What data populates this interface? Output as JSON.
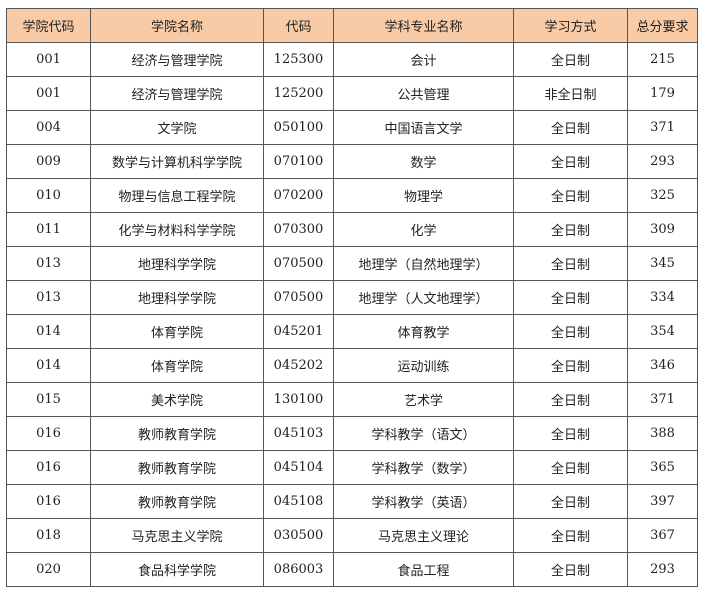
{
  "table": {
    "header": [
      "学院代码",
      "学院名称",
      "代码",
      "学科专业名称",
      "学习方式",
      "总分要求"
    ],
    "rows": [
      [
        "001",
        "经济与管理学院",
        "125300",
        "会计",
        "全日制",
        215
      ],
      [
        "001",
        "经济与管理学院",
        "125200",
        "公共管理",
        "非全日制",
        179
      ],
      [
        "004",
        "文学院",
        "050100",
        "中国语言文学",
        "全日制",
        371
      ],
      [
        "009",
        "数学与计算机科学学院",
        "070100",
        "数学",
        "全日制",
        293
      ],
      [
        "010",
        "物理与信息工程学院",
        "070200",
        "物理学",
        "全日制",
        325
      ],
      [
        "011",
        "化学与材料科学学院",
        "070300",
        "化学",
        "全日制",
        309
      ],
      [
        "013",
        "地理科学学院",
        "070500",
        "地理学（自然地理学）",
        "全日制",
        345
      ],
      [
        "013",
        "地理科学学院",
        "070500",
        "地理学（人文地理学）",
        "全日制",
        334
      ],
      [
        "014",
        "体育学院",
        "045201",
        "体育教学",
        "全日制",
        354
      ],
      [
        "014",
        "体育学院",
        "045202",
        "运动训练",
        "全日制",
        346
      ],
      [
        "015",
        "美术学院",
        "130100",
        "艺术学",
        "全日制",
        371
      ],
      [
        "016",
        "教师教育学院",
        "045103",
        "学科教学（语文）",
        "全日制",
        388
      ],
      [
        "016",
        "教师教育学院",
        "045104",
        "学科教学（数学）",
        "全日制",
        365
      ],
      [
        "016",
        "教师教育学院",
        "045108",
        "学科教学（英语）",
        "全日制",
        397
      ],
      [
        "018",
        "马克思主义学院",
        "030500",
        "马克思主义理论",
        "全日制",
        367
      ],
      [
        "020",
        "食品科学学院",
        "086003",
        "食品工程",
        "全日制",
        293
      ]
    ]
  }
}
